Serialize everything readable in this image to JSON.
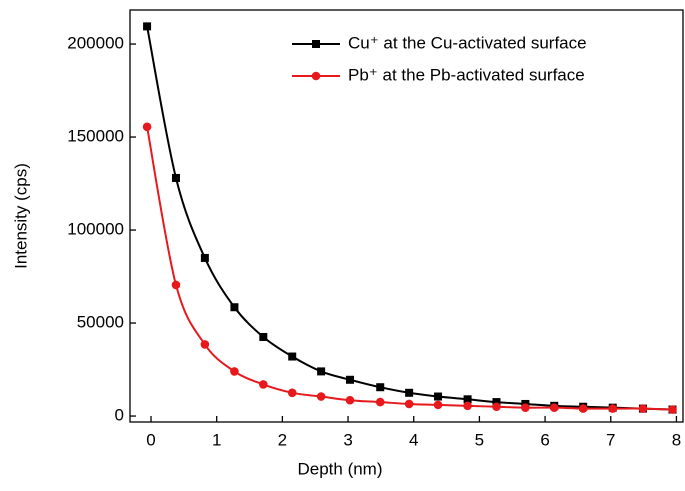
{
  "chart_data": {
    "type": "line",
    "x_label": "Depth (nm)",
    "y_label": "Intensity (cps)",
    "x": [
      -0.06,
      0.38,
      0.82,
      1.27,
      1.71,
      2.15,
      2.59,
      3.03,
      3.49,
      3.93,
      4.37,
      4.82,
      5.26,
      5.7,
      6.14,
      6.58,
      7.03,
      7.49,
      7.94
    ],
    "series": [
      {
        "name": "Cu⁺ at the Cu-activated surface",
        "color": "#000000",
        "marker": "square",
        "values": [
          209500,
          128000,
          85000,
          58500,
          42500,
          32000,
          24000,
          19500,
          15500,
          12500,
          10500,
          9000,
          7500,
          6500,
          5500,
          5000,
          4500,
          4000,
          3500
        ]
      },
      {
        "name": "Pb⁺ at the Pb-activated surface",
        "color": "#e8191c",
        "marker": "circle",
        "values": [
          155500,
          70500,
          38500,
          24000,
          17000,
          12500,
          10500,
          8500,
          7500,
          6500,
          6000,
          5500,
          5000,
          4500,
          4500,
          4000,
          4000,
          4000,
          3500
        ]
      }
    ],
    "xlim": [
      -0.32,
      8.1
    ],
    "xticks": [
      0,
      1,
      2,
      3,
      4,
      5,
      6,
      7,
      8
    ],
    "ylim": [
      -3200,
      218300
    ],
    "yticks": [
      0,
      50000,
      100000,
      150000,
      200000
    ],
    "legend": "upper right"
  }
}
